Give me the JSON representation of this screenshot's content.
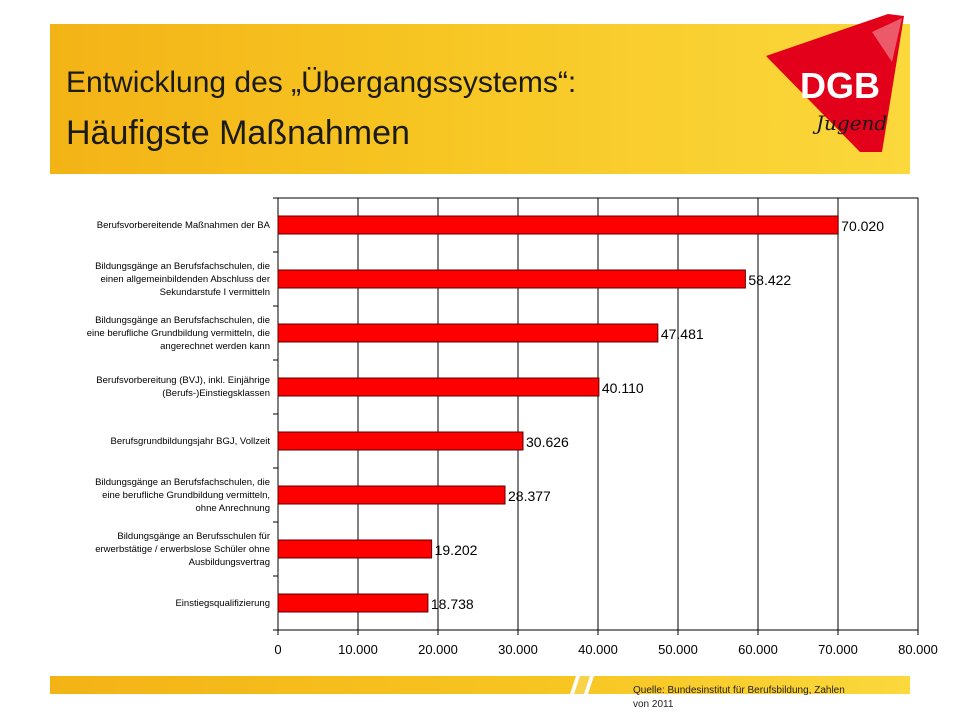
{
  "header": {
    "title_line1": "Entwicklung des „Übergangssystems“:",
    "title_line2": "Häufigste Maßnahmen"
  },
  "logo": {
    "text_top": "DGB",
    "text_bottom": "Jugend",
    "color": "#e2001a"
  },
  "colors": {
    "bar": "#ff0000",
    "bar_stroke": "#5a0000",
    "header": "#f7c623",
    "accent": "#e2001a"
  },
  "chart_data": {
    "type": "bar",
    "orientation": "horizontal",
    "categories": [
      "Berufsvorbereitende Maßnahmen der BA",
      "Bildungsgänge an Berufsfachschulen, die einen allgemeinbildenden Abschluss der Sekundarstufe I vermitteln",
      "Bildungsgänge an Berufsfachschulen, die eine berufliche Grundbildung vermitteln, die angerechnet werden kann",
      "Berufsvorbereitung (BVJ), inkl. Einjährige (Berufs-)Einstiegsklassen",
      "Berufsgrundbildungsjahr BGJ, Vollzeit",
      "Bildungsgänge an Berufsfachschulen, die eine berufliche Grundbildung vermitteln, ohne Anrechnung",
      "Bildungsgänge an Berufsschulen für erwerbstätige / erwerbslose Schüler ohne Ausbildungsvertrag",
      "Einstiegsqualifizierung"
    ],
    "category_lines": [
      [
        "Berufsvorbereitende Maßnahmen der BA"
      ],
      [
        "Bildungsgänge an Berufsfachschulen, die",
        "einen allgemeinbildenden Abschluss der",
        "Sekundarstufe I vermitteln"
      ],
      [
        "Bildungsgänge an Berufsfachschulen, die",
        "eine berufliche Grundbildung vermitteln, die",
        "angerechnet werden kann"
      ],
      [
        "Berufsvorbereitung (BVJ), inkl. Einjährige",
        "(Berufs-)Einstiegsklassen"
      ],
      [
        "Berufsgrundbildungsjahr BGJ, Vollzeit"
      ],
      [
        "Bildungsgänge an Berufsfachschulen, die",
        "eine berufliche Grundbildung vermitteln,",
        "ohne Anrechnung"
      ],
      [
        "Bildungsgänge an Berufsschulen für",
        "erwerbstätige / erwerbslose Schüler ohne",
        "Ausbildungsvertrag"
      ],
      [
        "Einstiegsqualifizierung"
      ]
    ],
    "values": [
      70020,
      58422,
      47481,
      40110,
      30626,
      28377,
      19202,
      18738
    ],
    "value_labels": [
      "70.020",
      "58.422",
      "47.481",
      "40.110",
      "30.626",
      "28.377",
      "19.202",
      "18.738"
    ],
    "xlim": [
      0,
      80000
    ],
    "xticks": [
      0,
      10000,
      20000,
      30000,
      40000,
      50000,
      60000,
      70000,
      80000
    ],
    "xtick_labels": [
      "0",
      "10.000",
      "20.000",
      "30.000",
      "40.000",
      "50.000",
      "60.000",
      "70.000",
      "80.000"
    ],
    "grid": true,
    "legend": "none"
  },
  "footer": {
    "source_line1": "Quelle: Bundesinstitut für Berufsbildung, Zahlen",
    "source_line2": "von 2011"
  }
}
